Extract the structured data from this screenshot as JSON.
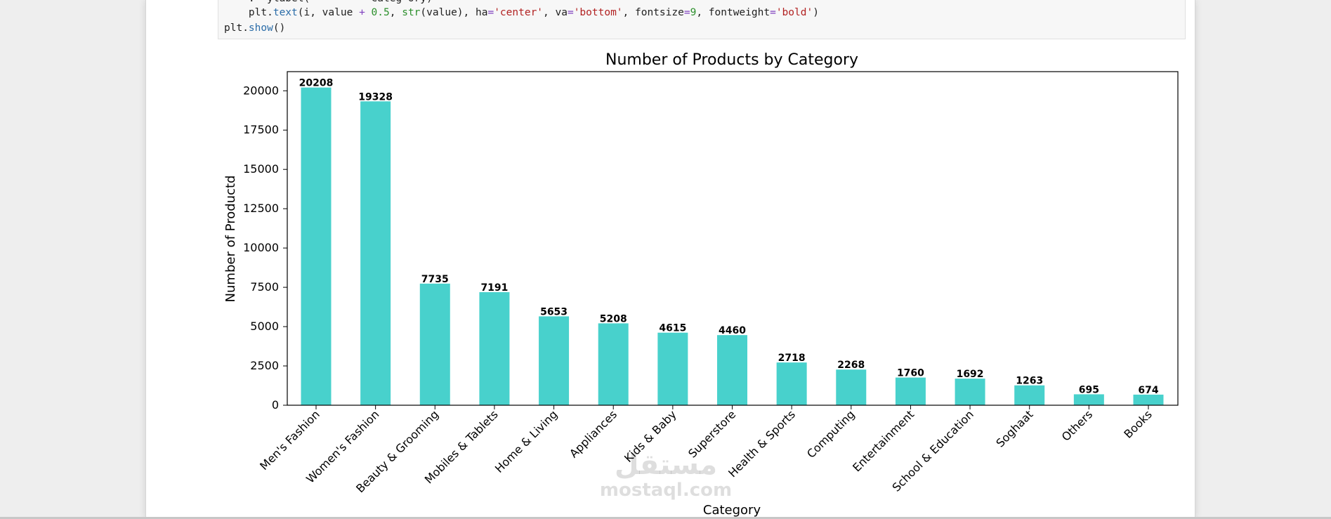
{
  "code": {
    "line0": "    .  ylabel(          Categ ory)",
    "line1_parts": [
      {
        "t": "    plt.",
        "c": ""
      },
      {
        "t": "text",
        "c": "fn"
      },
      {
        "t": "(i, value ",
        "c": ""
      },
      {
        "t": "+",
        "c": "op"
      },
      {
        "t": " ",
        "c": ""
      },
      {
        "t": "0.5",
        "c": "num"
      },
      {
        "t": ", ",
        "c": ""
      },
      {
        "t": "str",
        "c": "num"
      },
      {
        "t": "(value), ha",
        "c": ""
      },
      {
        "t": "=",
        "c": "op"
      },
      {
        "t": "'center'",
        "c": "str"
      },
      {
        "t": ", va",
        "c": ""
      },
      {
        "t": "=",
        "c": "op"
      },
      {
        "t": "'bottom'",
        "c": "str"
      },
      {
        "t": ", fontsize",
        "c": ""
      },
      {
        "t": "=",
        "c": "op"
      },
      {
        "t": "9",
        "c": "num"
      },
      {
        "t": ", fontweight",
        "c": ""
      },
      {
        "t": "=",
        "c": "op"
      },
      {
        "t": "'bold'",
        "c": "str"
      },
      {
        "t": ")",
        "c": ""
      }
    ],
    "line2_parts": [
      {
        "t": "plt.",
        "c": ""
      },
      {
        "t": "show",
        "c": "fn"
      },
      {
        "t": "()",
        "c": ""
      }
    ]
  },
  "watermark": {
    "arabic": "مستقل",
    "latin": "mostaql.com"
  },
  "colors": {
    "bar": "#48D1CC",
    "axis": "#000000",
    "text": "#000000"
  },
  "chart_data": {
    "type": "bar",
    "title": "Number of Products by Category",
    "xlabel": "Category",
    "ylabel": "Number of Productd",
    "categories": [
      "Men's Fashion",
      "Women's Fashion",
      "Beauty & Grooming",
      "Mobiles & Tablets",
      "Home & Living",
      "Appliances",
      "Kids & Baby",
      "Superstore",
      "Health & Sports",
      "Computing",
      "Entertainment",
      "School & Education",
      "Soghaat",
      "Others",
      "Books"
    ],
    "values": [
      20208,
      19328,
      7735,
      7191,
      5653,
      5208,
      4615,
      4460,
      2718,
      2268,
      1760,
      1692,
      1263,
      695,
      674
    ],
    "yticks": [
      0,
      2500,
      5000,
      7500,
      10000,
      12500,
      15000,
      17500,
      20000
    ],
    "ylim": [
      0,
      21218
    ],
    "grid": false,
    "legend": "none"
  }
}
